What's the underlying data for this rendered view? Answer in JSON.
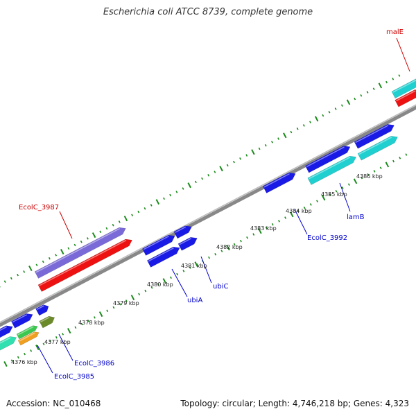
{
  "title": "Escherichia coli ATCC 8739, complete genome",
  "footer": {
    "accession": "Accession: NC_010468",
    "summary": "Topology: circular; Length: 4,746,218 bp; Genes: 4,323"
  },
  "colors": {
    "backbone": "#808080",
    "tick": "#1a8a1a",
    "cds_blue": "#1a1ae6",
    "cds_cyan": "#20d0d0",
    "cds_red": "#ee1111",
    "cds_purple": "#7a6ad8",
    "cds_olive": "#6b8a2a",
    "cds_green": "#3cc850",
    "cds_orange": "#f0a020",
    "cds_teal": "#30e0b0",
    "label_red": "#cc0000",
    "label_blue": "#0000cc"
  },
  "kbp_labels": [
    "4376 kbp",
    "4377 kbp",
    "4378 kbp",
    "4379 kbp",
    "4380 kbp",
    "4381 kbp",
    "4382 kbp",
    "4383 kbp",
    "4384 kbp",
    "4385 kbp",
    "4386 kbp"
  ],
  "gene_labels": [
    {
      "name": "malE",
      "color": "red"
    },
    {
      "name": "EcolC_3987",
      "color": "red"
    },
    {
      "name": "EcolC_3992",
      "color": "blue"
    },
    {
      "name": "lamB",
      "color": "blue"
    },
    {
      "name": "ubiA",
      "color": "blue"
    },
    {
      "name": "ubiC",
      "color": "blue"
    },
    {
      "name": "EcolC_3986",
      "color": "blue"
    },
    {
      "name": "EcolC_3985",
      "color": "blue"
    }
  ]
}
